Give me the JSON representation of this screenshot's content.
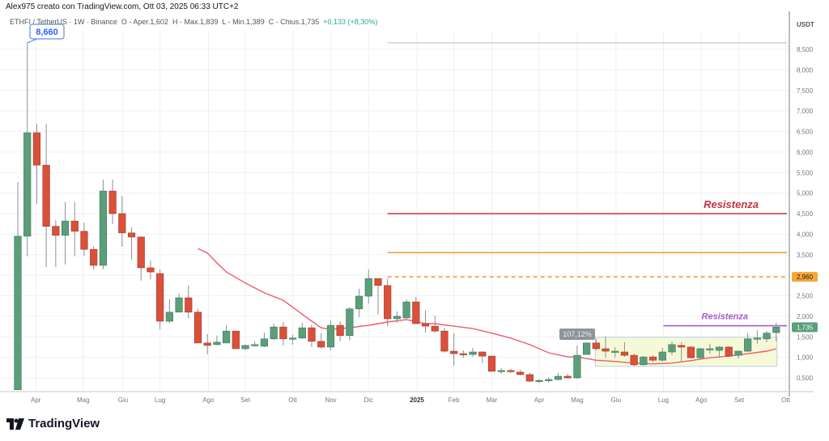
{
  "header": {
    "text": "Alex975 creato con TradingView.com, Ott 03, 2025 06:33 UTC+2"
  },
  "legend": {
    "symbol": "ETHFI / TetherUS · 1W · Binance",
    "open": "O - Aper.1,602",
    "high": "H - Max.1,839",
    "low": "L - Min.1,389",
    "close": "C - Chius.1,735",
    "change": "+0,133 (+8,30%)"
  },
  "logo": {
    "text": "TradingView"
  },
  "colors": {
    "up": "#5b9e7a",
    "down": "#d9503b",
    "ma": "#f05a6e",
    "resist_red": "#c8303e",
    "orange": "#f0a040",
    "purple": "#a45bd0",
    "box": "#f5f9d8"
  },
  "chart_data": {
    "type": "candlestick",
    "title": "ETHFI / TetherUS 1W Binance",
    "ylabel": "USDT",
    "ylim": [
      0.1,
      8.9
    ],
    "y_ticks": [
      {
        "v": 8.5,
        "label": "8,500"
      },
      {
        "v": 8.0,
        "label": "8,000"
      },
      {
        "v": 7.5,
        "label": "7,500"
      },
      {
        "v": 7.0,
        "label": "7,000"
      },
      {
        "v": 6.5,
        "label": "6,500"
      },
      {
        "v": 6.0,
        "label": "6,000"
      },
      {
        "v": 5.5,
        "label": "5,500"
      },
      {
        "v": 5.0,
        "label": "5,000"
      },
      {
        "v": 4.5,
        "label": "4,500"
      },
      {
        "v": 4.0,
        "label": "4,000"
      },
      {
        "v": 3.5,
        "label": "3,500"
      },
      {
        "v": 2.5,
        "label": "2,500"
      },
      {
        "v": 2.0,
        "label": "2,000"
      },
      {
        "v": 1.5,
        "label": "1,500"
      },
      {
        "v": 1.0,
        "label": "1,000"
      },
      {
        "v": 0.5,
        "label": "0,500"
      }
    ],
    "x_ticks": [
      {
        "i": 1.9,
        "label": "Apr"
      },
      {
        "i": 6.9,
        "label": "Mag"
      },
      {
        "i": 11.1,
        "label": "Giu"
      },
      {
        "i": 15,
        "label": "Lug"
      },
      {
        "i": 20.1,
        "label": "Ago"
      },
      {
        "i": 24,
        "label": "Set"
      },
      {
        "i": 29,
        "label": "Ott"
      },
      {
        "i": 33,
        "label": "Nov"
      },
      {
        "i": 37,
        "label": "Dic"
      },
      {
        "i": 42.1,
        "label": "2025",
        "bold": true
      },
      {
        "i": 46,
        "label": "Feb"
      },
      {
        "i": 50,
        "label": "Mar"
      },
      {
        "i": 55,
        "label": "Apr"
      },
      {
        "i": 59,
        "label": "Mag"
      },
      {
        "i": 63.1,
        "label": "Giu"
      },
      {
        "i": 68.1,
        "label": "Lug"
      },
      {
        "i": 72.1,
        "label": "Ago"
      },
      {
        "i": 76.1,
        "label": "Set"
      },
      {
        "i": 81,
        "label": "Ott"
      }
    ],
    "candles_ohlc": [
      [
        0.21,
        5.27,
        0.21,
        3.95
      ],
      [
        3.95,
        8.66,
        3.46,
        6.47
      ],
      [
        6.47,
        6.69,
        4.74,
        5.68
      ],
      [
        5.68,
        6.69,
        3.2,
        4.19
      ],
      [
        4.19,
        4.34,
        3.2,
        3.97
      ],
      [
        3.97,
        4.78,
        3.26,
        4.32
      ],
      [
        4.32,
        4.78,
        3.46,
        4.07
      ],
      [
        4.07,
        4.28,
        3.48,
        3.63
      ],
      [
        3.63,
        3.71,
        3.14,
        3.24
      ],
      [
        3.24,
        5.33,
        3.14,
        5.05
      ],
      [
        5.05,
        5.33,
        4.25,
        4.5
      ],
      [
        4.5,
        4.93,
        3.69,
        4.03
      ],
      [
        4.03,
        4.17,
        3.38,
        3.93
      ],
      [
        3.93,
        3.95,
        2.87,
        3.18
      ],
      [
        3.18,
        3.36,
        2.9,
        3.08
      ],
      [
        3.04,
        3.14,
        1.68,
        1.88
      ],
      [
        1.88,
        2.41,
        1.84,
        2.1
      ],
      [
        2.1,
        2.55,
        2.1,
        2.45
      ],
      [
        2.45,
        2.75,
        1.96,
        2.1
      ],
      [
        2.1,
        2.18,
        1.35,
        1.35
      ],
      [
        1.35,
        1.57,
        1.07,
        1.29
      ],
      [
        1.31,
        1.53,
        1.29,
        1.37
      ],
      [
        1.35,
        1.78,
        1.35,
        1.64
      ],
      [
        1.64,
        1.64,
        1.21,
        1.21
      ],
      [
        1.21,
        1.31,
        1.17,
        1.29
      ],
      [
        1.29,
        1.39,
        1.27,
        1.31
      ],
      [
        1.27,
        1.6,
        1.25,
        1.45
      ],
      [
        1.45,
        1.82,
        1.42,
        1.74
      ],
      [
        1.74,
        1.86,
        1.29,
        1.45
      ],
      [
        1.45,
        1.55,
        1.31,
        1.47
      ],
      [
        1.47,
        1.84,
        1.45,
        1.72
      ],
      [
        1.72,
        1.8,
        1.25,
        1.39
      ],
      [
        1.39,
        1.59,
        1.21,
        1.25
      ],
      [
        1.25,
        1.9,
        1.17,
        1.78
      ],
      [
        1.78,
        1.88,
        1.39,
        1.53
      ],
      [
        1.53,
        2.22,
        1.41,
        2.18
      ],
      [
        2.18,
        2.67,
        1.98,
        2.49
      ],
      [
        2.49,
        3.14,
        2.31,
        2.92
      ],
      [
        2.92,
        2.92,
        2.04,
        2.75
      ],
      [
        2.75,
        2.92,
        1.76,
        1.94
      ],
      [
        1.94,
        2.12,
        1.84,
        2.0
      ],
      [
        1.96,
        2.41,
        1.94,
        2.35
      ],
      [
        2.35,
        2.47,
        1.82,
        1.82
      ],
      [
        1.82,
        2.14,
        1.6,
        1.76
      ],
      [
        1.76,
        2.02,
        1.6,
        1.64
      ],
      [
        1.64,
        1.72,
        1.11,
        1.15
      ],
      [
        1.15,
        1.59,
        0.8,
        1.09
      ],
      [
        1.09,
        1.17,
        0.99,
        1.07
      ],
      [
        1.07,
        1.23,
        1.01,
        1.13
      ],
      [
        1.13,
        1.15,
        0.86,
        1.03
      ],
      [
        1.03,
        1.05,
        0.66,
        0.66
      ],
      [
        0.66,
        0.74,
        0.6,
        0.68
      ],
      [
        0.68,
        0.72,
        0.62,
        0.66
      ],
      [
        0.64,
        0.7,
        0.56,
        0.58
      ],
      [
        0.58,
        0.62,
        0.4,
        0.42
      ],
      [
        0.42,
        0.46,
        0.38,
        0.44
      ],
      [
        0.44,
        0.52,
        0.38,
        0.46
      ],
      [
        0.46,
        0.62,
        0.44,
        0.54
      ],
      [
        0.54,
        0.6,
        0.48,
        0.5
      ],
      [
        0.5,
        1.29,
        0.48,
        1.05
      ],
      [
        1.07,
        1.37,
        1.07,
        1.35
      ],
      [
        1.35,
        1.45,
        1.17,
        1.21
      ],
      [
        1.21,
        1.51,
        0.99,
        1.15
      ],
      [
        1.15,
        1.25,
        0.99,
        1.15
      ],
      [
        1.13,
        1.37,
        1.01,
        1.05
      ],
      [
        1.05,
        1.09,
        0.78,
        0.82
      ],
      [
        0.82,
        1.03,
        0.8,
        1.01
      ],
      [
        1.01,
        1.05,
        0.88,
        0.93
      ],
      [
        0.93,
        1.23,
        0.9,
        1.13
      ],
      [
        1.13,
        1.39,
        1.05,
        1.31
      ],
      [
        1.29,
        1.37,
        0.9,
        1.25
      ],
      [
        1.25,
        1.27,
        0.97,
        0.99
      ],
      [
        0.99,
        1.23,
        0.97,
        1.21
      ],
      [
        1.19,
        1.33,
        1.09,
        1.21
      ],
      [
        1.17,
        1.27,
        0.99,
        1.25
      ],
      [
        1.25,
        1.27,
        1.01,
        1.03
      ],
      [
        1.05,
        1.17,
        0.97,
        1.15
      ],
      [
        1.15,
        1.59,
        1.13,
        1.45
      ],
      [
        1.45,
        1.66,
        1.33,
        1.47
      ],
      [
        1.45,
        1.64,
        1.37,
        1.59
      ],
      [
        1.602,
        1.839,
        1.389,
        1.735
      ]
    ],
    "moving_average": [
      [
        19,
        3.65
      ],
      [
        20,
        3.54
      ],
      [
        21,
        3.3
      ],
      [
        22,
        3.08
      ],
      [
        24,
        2.81
      ],
      [
        26,
        2.57
      ],
      [
        28,
        2.39
      ],
      [
        29,
        2.22
      ],
      [
        31,
        1.88
      ],
      [
        32,
        1.72
      ],
      [
        33,
        1.68
      ],
      [
        35,
        1.72
      ],
      [
        37,
        1.78
      ],
      [
        39,
        1.86
      ],
      [
        41,
        1.92
      ],
      [
        43,
        1.82
      ],
      [
        44,
        1.82
      ],
      [
        46,
        1.76
      ],
      [
        48,
        1.7
      ],
      [
        50,
        1.59
      ],
      [
        52,
        1.47
      ],
      [
        54,
        1.31
      ],
      [
        56,
        1.11
      ],
      [
        58,
        1.01
      ],
      [
        59,
        1.01
      ],
      [
        61,
        0.93
      ],
      [
        63,
        0.9
      ],
      [
        65,
        0.86
      ],
      [
        67,
        0.84
      ],
      [
        69,
        0.86
      ],
      [
        71,
        0.92
      ],
      [
        73,
        0.99
      ],
      [
        75,
        1.03
      ],
      [
        77,
        1.09
      ],
      [
        79,
        1.15
      ],
      [
        80,
        1.21
      ]
    ],
    "horizontal_lines": [
      {
        "price": 8.66,
        "from": 39,
        "style": "gray"
      },
      {
        "price": 4.5,
        "from": 39,
        "style": "red",
        "label": "Resistenza"
      },
      {
        "price": 3.55,
        "from": 39,
        "style": "orange"
      },
      {
        "price": 2.96,
        "from": 39,
        "style": "orange-dashed"
      },
      {
        "price": 1.77,
        "from": 68.1,
        "style": "purple",
        "label": "Resistenza"
      }
    ],
    "range_box": {
      "from": 61,
      "to": 80,
      "top": 1.49,
      "bottom": 0.78
    },
    "annotations": {
      "peak_label": "8,660",
      "percent_label": "107,12%",
      "price_tag_orange": "2,960",
      "price_tag_last": "1,735"
    }
  }
}
